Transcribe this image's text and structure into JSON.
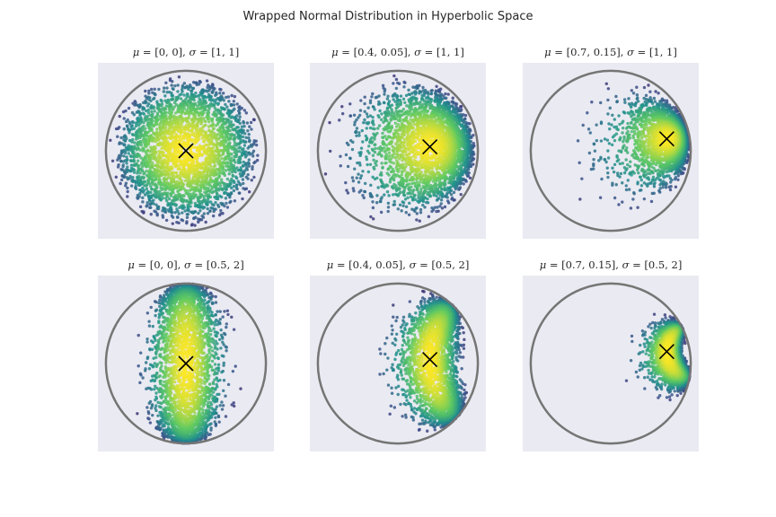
{
  "figure": {
    "title": "Wrapped Normal Distribution in Hyperbolic Space",
    "colors": {
      "background": "#ffffff",
      "axes_face": "#eaeaf2",
      "boundary": "#757575",
      "mean_marker": "#000000",
      "colormap": [
        "#440154",
        "#3b528b",
        "#21918c",
        "#5ec962",
        "#fde725"
      ]
    }
  },
  "chart_data": [
    {
      "type": "scatter",
      "title_text": "μ = [0, 0], σ = [1, 1]",
      "mu_label": "[0, 0]",
      "sigma_label": "[1, 1]",
      "mu": [
        0,
        0
      ],
      "sigma": [
        1,
        1
      ],
      "xlim": [
        -1.1,
        1.1
      ],
      "ylim": [
        -1.1,
        1.1
      ],
      "boundary_radius": 1,
      "mean_marker": "x",
      "color_by": "density"
    },
    {
      "type": "scatter",
      "title_text": "μ = [0.4, 0.05], σ = [1, 1]",
      "mu_label": "[0.4, 0.05]",
      "sigma_label": "[1, 1]",
      "mu": [
        0.4,
        0.05
      ],
      "sigma": [
        1,
        1
      ],
      "xlim": [
        -1.1,
        1.1
      ],
      "ylim": [
        -1.1,
        1.1
      ],
      "boundary_radius": 1,
      "mean_marker": "x",
      "color_by": "density"
    },
    {
      "type": "scatter",
      "title_text": "μ = [0.7, 0.15], σ = [1, 1]",
      "mu_label": "[0.7, 0.15]",
      "sigma_label": "[1, 1]",
      "mu": [
        0.7,
        0.15
      ],
      "sigma": [
        1,
        1
      ],
      "xlim": [
        -1.1,
        1.1
      ],
      "ylim": [
        -1.1,
        1.1
      ],
      "boundary_radius": 1,
      "mean_marker": "x",
      "color_by": "density"
    },
    {
      "type": "scatter",
      "title_text": "μ = [0, 0], σ = [0.5, 2]",
      "mu_label": "[0, 0]",
      "sigma_label": "[0.5, 2]",
      "mu": [
        0,
        0
      ],
      "sigma": [
        0.5,
        2
      ],
      "xlim": [
        -1.1,
        1.1
      ],
      "ylim": [
        -1.1,
        1.1
      ],
      "boundary_radius": 1,
      "mean_marker": "x",
      "color_by": "density"
    },
    {
      "type": "scatter",
      "title_text": "μ = [0.4, 0.05], σ = [0.5, 2]",
      "mu_label": "[0.4, 0.05]",
      "sigma_label": "[0.5, 2]",
      "mu": [
        0.4,
        0.05
      ],
      "sigma": [
        0.5,
        2
      ],
      "xlim": [
        -1.1,
        1.1
      ],
      "ylim": [
        -1.1,
        1.1
      ],
      "boundary_radius": 1,
      "mean_marker": "x",
      "color_by": "density"
    },
    {
      "type": "scatter",
      "title_text": "μ = [0.7, 0.15], σ = [0.5, 2]",
      "mu_label": "[0.7, 0.15]",
      "sigma_label": "[0.5, 2]",
      "mu": [
        0.7,
        0.15
      ],
      "sigma": [
        0.5,
        2
      ],
      "xlim": [
        -1.1,
        1.1
      ],
      "ylim": [
        -1.1,
        1.1
      ],
      "boundary_radius": 1,
      "mean_marker": "x",
      "color_by": "density"
    }
  ]
}
